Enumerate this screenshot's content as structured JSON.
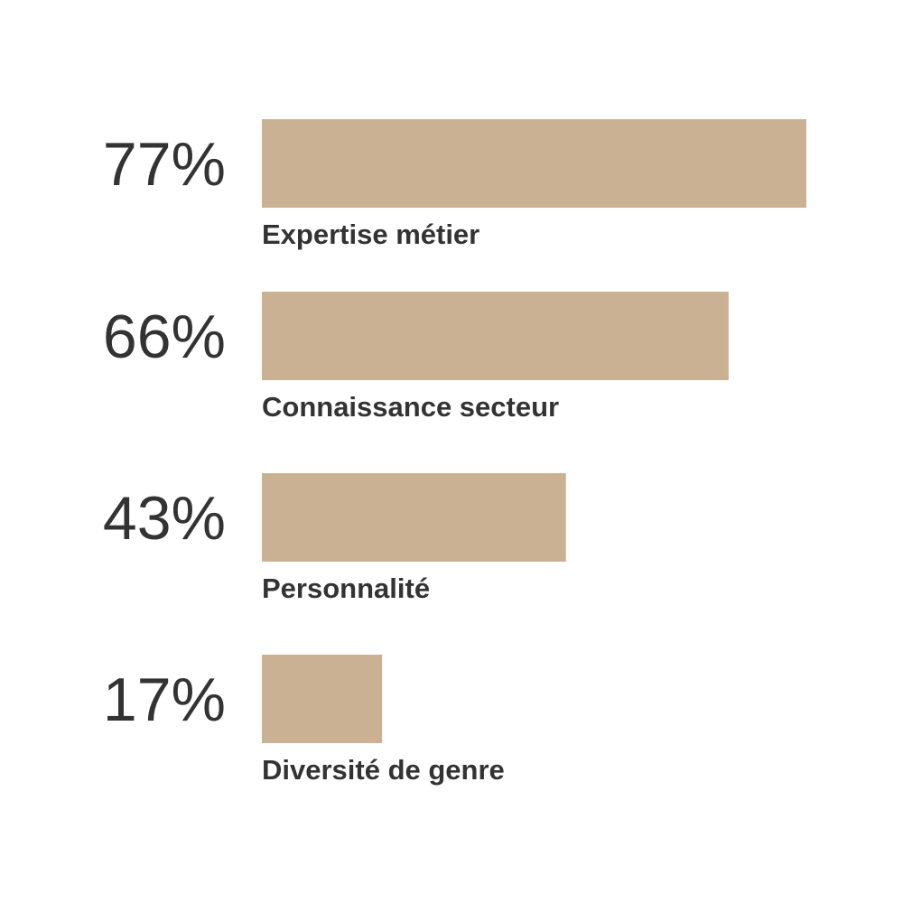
{
  "chart_data": {
    "type": "bar",
    "orientation": "horizontal",
    "categories": [
      "Expertise métier",
      "Connaissance secteur",
      "Personnalité",
      "Diversité de genre"
    ],
    "values": [
      77,
      66,
      43,
      17
    ],
    "value_labels": [
      "77%",
      "66%",
      "43%",
      "17%"
    ],
    "unit": "%",
    "xlim": [
      0,
      77
    ],
    "grid": false,
    "bar_color": "#cbb193",
    "text_color": "#333333"
  }
}
